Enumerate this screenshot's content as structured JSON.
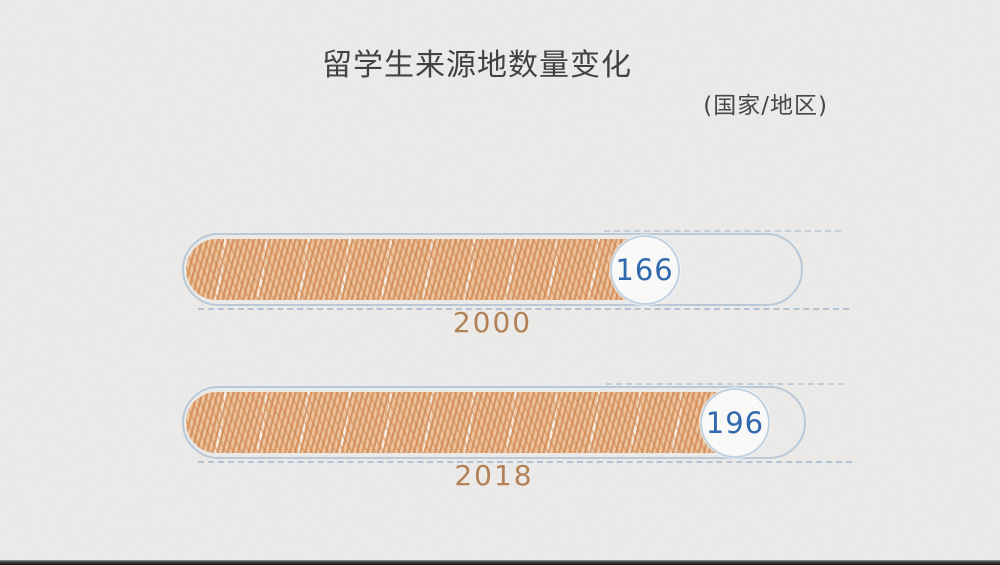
{
  "page": {
    "title": "留学生来源地数量变化",
    "subtitle": "(国家/地区)"
  },
  "chart_data": {
    "type": "bar",
    "orientation": "horizontal",
    "title": "留学生来源地数量变化",
    "subtitle": "(国家/地区)",
    "unit_note": "国家/地区",
    "categories": [
      "2000",
      "2018"
    ],
    "values": [
      166,
      196
    ],
    "axis_max_implied": 211,
    "grid": false,
    "legend": false,
    "value_labels_shown": true,
    "style": "hand-drawn sketch on paper",
    "colors": {
      "bar_fill": "#dd9a66",
      "track_outline": "#7da2c6",
      "value_text": "#2b66ad",
      "category_label": "#b27f52",
      "title_text": "#3d3d3d",
      "background": "#edecea"
    }
  },
  "bars": [
    {
      "label": "2000",
      "value": "166"
    },
    {
      "label": "2018",
      "value": "196"
    }
  ]
}
